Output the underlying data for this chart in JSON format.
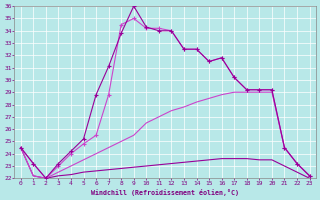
{
  "xlabel": "Windchill (Refroidissement éolien,°C)",
  "bg_color": "#b8e8e8",
  "grid_color": "#c0d8d8",
  "line_color1": "#990099",
  "line_color2": "#cc44cc",
  "xlim": [
    -0.5,
    23.5
  ],
  "ylim": [
    22,
    36
  ],
  "yticks": [
    22,
    23,
    24,
    25,
    26,
    27,
    28,
    29,
    30,
    31,
    32,
    33,
    34,
    35,
    36
  ],
  "xticks": [
    0,
    1,
    2,
    3,
    4,
    5,
    6,
    7,
    8,
    9,
    10,
    11,
    12,
    13,
    14,
    15,
    16,
    17,
    18,
    19,
    20,
    21,
    22,
    23
  ],
  "line1_x": [
    0,
    1,
    2,
    3,
    4,
    5,
    6,
    7,
    8,
    9,
    10,
    11,
    12,
    13,
    14,
    15,
    16,
    17,
    18,
    19,
    20,
    21,
    22,
    23
  ],
  "line1_y": [
    24.5,
    23.2,
    22.0,
    23.2,
    24.2,
    25.2,
    28.8,
    31.1,
    33.8,
    36.0,
    34.3,
    34.0,
    34.0,
    32.5,
    32.5,
    31.5,
    31.8,
    30.2,
    29.2,
    29.2,
    29.2,
    24.5,
    23.2,
    22.2
  ],
  "line2_x": [
    0,
    1,
    2,
    3,
    4,
    5,
    6,
    7,
    8,
    9,
    10,
    11,
    12,
    13,
    14,
    15,
    16,
    17,
    18,
    19,
    20,
    21,
    22,
    23
  ],
  "line2_y": [
    24.5,
    23.2,
    22.0,
    23.0,
    24.0,
    24.8,
    25.5,
    28.8,
    34.5,
    35.0,
    34.2,
    34.2,
    34.0,
    32.5,
    32.5,
    31.5,
    31.8,
    30.2,
    29.2,
    29.2,
    29.2,
    24.5,
    23.2,
    22.2
  ],
  "line3_x": [
    0,
    1,
    2,
    3,
    4,
    5,
    6,
    7,
    8,
    9,
    10,
    11,
    12,
    13,
    14,
    15,
    16,
    17,
    18,
    19,
    20,
    21,
    22,
    23
  ],
  "line3_y": [
    24.5,
    22.2,
    22.0,
    22.5,
    23.0,
    23.5,
    24.0,
    24.5,
    25.0,
    25.5,
    26.5,
    27.0,
    27.5,
    27.8,
    28.2,
    28.5,
    28.8,
    29.0,
    29.0,
    29.0,
    29.0,
    24.5,
    23.2,
    22.2
  ],
  "line4_x": [
    0,
    1,
    2,
    3,
    4,
    5,
    6,
    7,
    8,
    9,
    10,
    11,
    12,
    13,
    14,
    15,
    16,
    17,
    18,
    19,
    20,
    21,
    22,
    23
  ],
  "line4_y": [
    24.5,
    22.2,
    22.0,
    22.2,
    22.3,
    22.5,
    22.6,
    22.7,
    22.8,
    22.9,
    23.0,
    23.1,
    23.2,
    23.3,
    23.4,
    23.5,
    23.6,
    23.6,
    23.6,
    23.5,
    23.5,
    23.0,
    22.5,
    22.0
  ]
}
